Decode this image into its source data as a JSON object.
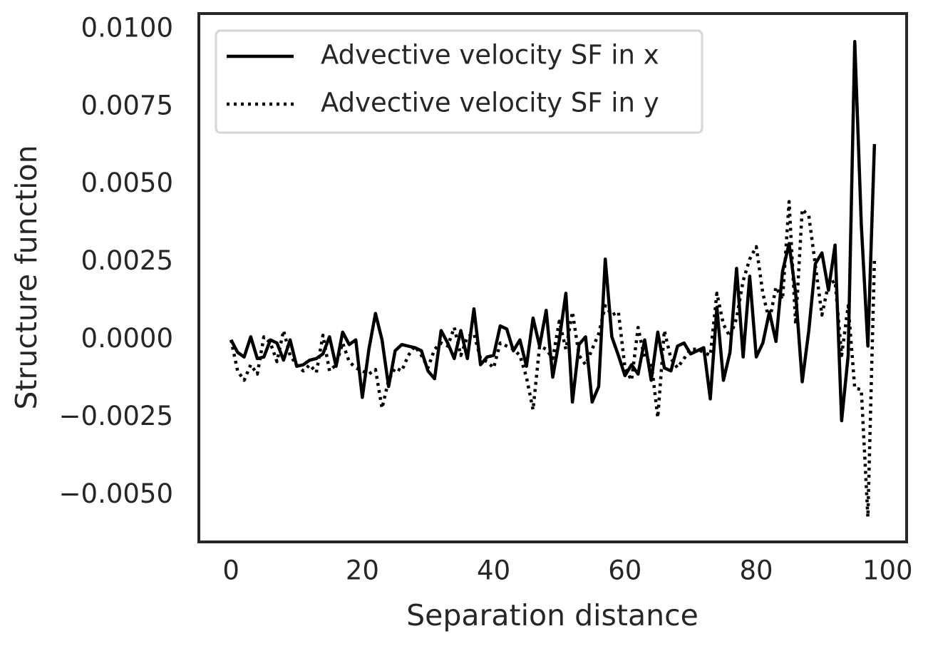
{
  "chart_data": {
    "type": "line",
    "xlabel": "Separation distance",
    "ylabel": "Structure function",
    "x": [
      0,
      1,
      2,
      3,
      4,
      5,
      6,
      7,
      8,
      9,
      10,
      11,
      12,
      13,
      14,
      15,
      16,
      17,
      18,
      19,
      20,
      21,
      22,
      23,
      24,
      25,
      26,
      27,
      28,
      29,
      30,
      31,
      32,
      33,
      34,
      35,
      36,
      37,
      38,
      39,
      40,
      41,
      42,
      43,
      44,
      45,
      46,
      47,
      48,
      49,
      50,
      51,
      52,
      53,
      54,
      55,
      56,
      57,
      58,
      59,
      60,
      61,
      62,
      63,
      64,
      65,
      66,
      67,
      68,
      69,
      70,
      71,
      72,
      73,
      74,
      75,
      76,
      77,
      78,
      79,
      80,
      81,
      82,
      83,
      84,
      85,
      86,
      87,
      88,
      89,
      90,
      91,
      92,
      93,
      94,
      95,
      96,
      97,
      98
    ],
    "series": [
      {
        "name": "Advective velocity SF in x",
        "color": "#000000",
        "dash": "solid",
        "values": [
          0,
          -0.0004,
          -0.00055,
          0.0001,
          -0.0006,
          -0.00055,
          0,
          -0.0001,
          -0.00065,
          0,
          -0.00085,
          -0.0008,
          -0.00065,
          -0.0006,
          -0.00045,
          0.0001,
          -0.00085,
          0.00025,
          -0.00015,
          0,
          -0.00185,
          -0.0003,
          0.00085,
          0,
          -0.0015,
          -0.00035,
          -0.00015,
          -0.0002,
          -0.00025,
          -0.00035,
          -0.001,
          -0.00125,
          0.0003,
          -0.0001,
          -0.0006,
          0.0003,
          -0.0006,
          0.001,
          -0.0008,
          -0.00055,
          -0.0005,
          0.00045,
          0.00035,
          -0.00035,
          0,
          -0.00085,
          0.0007,
          -0.0002,
          0.00095,
          -0.0012,
          0,
          0.0015,
          -0.002,
          -0.00015,
          0.0001,
          -0.002,
          -0.0015,
          0.0026,
          0.0001,
          -0.0005,
          -0.00115,
          -0.0008,
          -0.0011,
          0,
          -0.0013,
          0.00025,
          -0.0009,
          -0.001,
          -0.0002,
          -0.0001,
          -0.00045,
          -0.00035,
          -0.00025,
          -0.0019,
          0.00105,
          -0.0013,
          -0.0004,
          0.0023,
          -0.00055,
          0.00205,
          -0.00055,
          -0.0001,
          0.0009,
          -5e-05,
          0.0022,
          0.0031,
          0.0015,
          -0.00135,
          0.0003,
          0.00245,
          0.0028,
          0.0016,
          0.00305,
          -0.0026,
          -0.0005,
          0.0096,
          0.0037,
          -0.0002,
          0.0063
        ]
      },
      {
        "name": "Advective velocity SF in y",
        "color": "#000000",
        "dash": "dotted",
        "values": [
          0,
          -0.001,
          -0.0013,
          -0.0008,
          -0.0011,
          0.0001,
          -0.0001,
          -0.0007,
          0.0003,
          -0.0005,
          -0.0008,
          -0.001,
          -0.0008,
          -0.00105,
          0.00015,
          -0.001,
          -0.0008,
          -0.0001,
          -0.0007,
          -0.0009,
          -0.001,
          -0.0011,
          -0.00095,
          -0.0022,
          -0.0013,
          -0.0009,
          -0.001,
          -0.0005,
          -0.0002,
          -0.0005,
          -0.0009,
          -0.0003,
          -0.0001,
          -0.0002,
          0.0004,
          -0.0005,
          0.0001,
          0.0002,
          -0.0006,
          -0.0007,
          -0.0009,
          -0.0001,
          -0.0002,
          -0.0003,
          -0.0005,
          -0.0012,
          -0.00225,
          -0.0002,
          -0.0003,
          -0.0006,
          0.0006,
          -0.0003,
          0.0009,
          -0.0005,
          -0.0008,
          -0.0003,
          0.0002,
          0.0011,
          0.0008,
          0.0009,
          -0.0009,
          -0.0013,
          0.0004,
          -0.0006,
          -0.0007,
          -0.0025,
          0.0003,
          -0.0006,
          -0.0009,
          -0.0006,
          -0.0003,
          -0.0003,
          -0.0004,
          -0.0005,
          0.0015,
          0.0005,
          0.0001,
          0.0007,
          0.0019,
          0.0026,
          0.003,
          0.0015,
          0.0006,
          0.0017,
          0.0013,
          0.00445,
          0.0005,
          0.0042,
          0.004,
          0.0024,
          0.0008,
          0.0018,
          0.0019,
          -0.0005,
          0.0011,
          -0.00155,
          -0.0016,
          -0.0057,
          0.0026
        ]
      }
    ],
    "xlim": [
      -4.9,
      102.9
    ],
    "ylim": [
      -0.0065,
      0.0105
    ],
    "xticks": [
      0,
      20,
      40,
      60,
      80,
      100
    ],
    "yticks": [
      {
        "value": -0.005,
        "label": "−0.0050"
      },
      {
        "value": -0.0025,
        "label": "−0.0025"
      },
      {
        "value": 0,
        "label": "0.0000"
      },
      {
        "value": 0.0025,
        "label": "0.0025"
      },
      {
        "value": 0.005,
        "label": "0.0050"
      },
      {
        "value": 0.0075,
        "label": "0.0075"
      },
      {
        "value": 0.01,
        "label": "0.0100"
      }
    ],
    "grid": false,
    "legend": "upper left"
  }
}
